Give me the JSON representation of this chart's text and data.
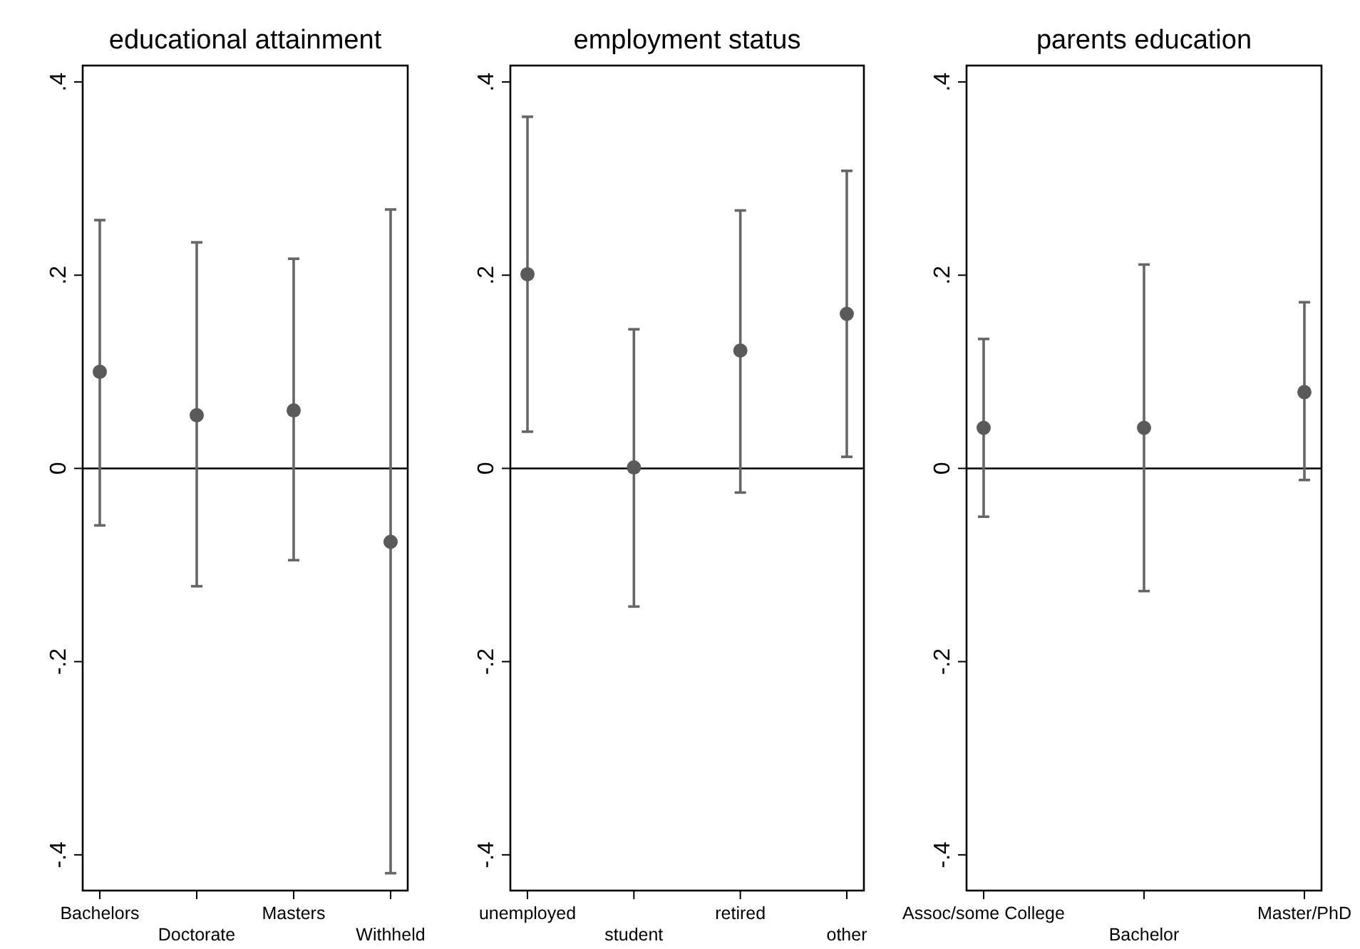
{
  "chart_data": [
    {
      "type": "scatter",
      "title": "educational attainment",
      "categories": [
        "Bachelors",
        "Doctorate",
        "Masters",
        "Withheld"
      ],
      "color": "#5a5a5a",
      "marker": "circle",
      "grid": false,
      "values": [
        0.1,
        0.055,
        0.06,
        -0.076
      ],
      "errors": [
        [
          -0.059,
          0.257
        ],
        [
          -0.122,
          0.234
        ],
        [
          -0.095,
          0.217
        ],
        [
          -0.419,
          0.268
        ]
      ],
      "ylim": [
        -0.437,
        0.417
      ],
      "yticks": [
        {
          "value": -0.4,
          "label": "-.4"
        },
        {
          "value": -0.2,
          "label": "-.2"
        },
        {
          "value": 0,
          "label": "0"
        },
        {
          "value": 0.2,
          "label": ".2"
        },
        {
          "value": 0.4,
          "label": ".4"
        }
      ],
      "ref_lines": [
        {
          "axis": "y",
          "value": 0,
          "color": "#000000"
        }
      ]
    },
    {
      "type": "scatter",
      "title": "employment status",
      "categories": [
        "unemployed",
        "student",
        "retired",
        "other"
      ],
      "color": "#5a5a5a",
      "marker": "circle",
      "grid": false,
      "values": [
        0.201,
        0.001,
        0.122,
        0.16
      ],
      "errors": [
        [
          0.038,
          0.364
        ],
        [
          -0.143,
          0.144
        ],
        [
          -0.025,
          0.267
        ],
        [
          0.012,
          0.308
        ]
      ],
      "ylim": [
        -0.437,
        0.417
      ],
      "yticks": [
        {
          "value": -0.4,
          "label": "-.4"
        },
        {
          "value": -0.2,
          "label": "-.2"
        },
        {
          "value": 0,
          "label": "0"
        },
        {
          "value": 0.2,
          "label": ".2"
        },
        {
          "value": 0.4,
          "label": ".4"
        }
      ],
      "ref_lines": [
        {
          "axis": "y",
          "value": 0,
          "color": "#000000"
        }
      ]
    },
    {
      "type": "scatter",
      "title": "parents education",
      "categories": [
        "Assoc/some College",
        "Bachelor",
        "Master/PhD"
      ],
      "color": "#5a5a5a",
      "marker": "circle",
      "grid": false,
      "values": [
        0.042,
        0.042,
        0.079
      ],
      "errors": [
        [
          -0.05,
          0.134
        ],
        [
          -0.127,
          0.211
        ],
        [
          -0.012,
          0.172
        ]
      ],
      "ylim": [
        -0.437,
        0.417
      ],
      "yticks": [
        {
          "value": -0.4,
          "label": "-.4"
        },
        {
          "value": -0.2,
          "label": "-.2"
        },
        {
          "value": 0,
          "label": "0"
        },
        {
          "value": 0.2,
          "label": ".2"
        },
        {
          "value": 0.4,
          "label": ".4"
        }
      ],
      "ref_lines": [
        {
          "axis": "y",
          "value": 0,
          "color": "#000000"
        }
      ]
    }
  ]
}
